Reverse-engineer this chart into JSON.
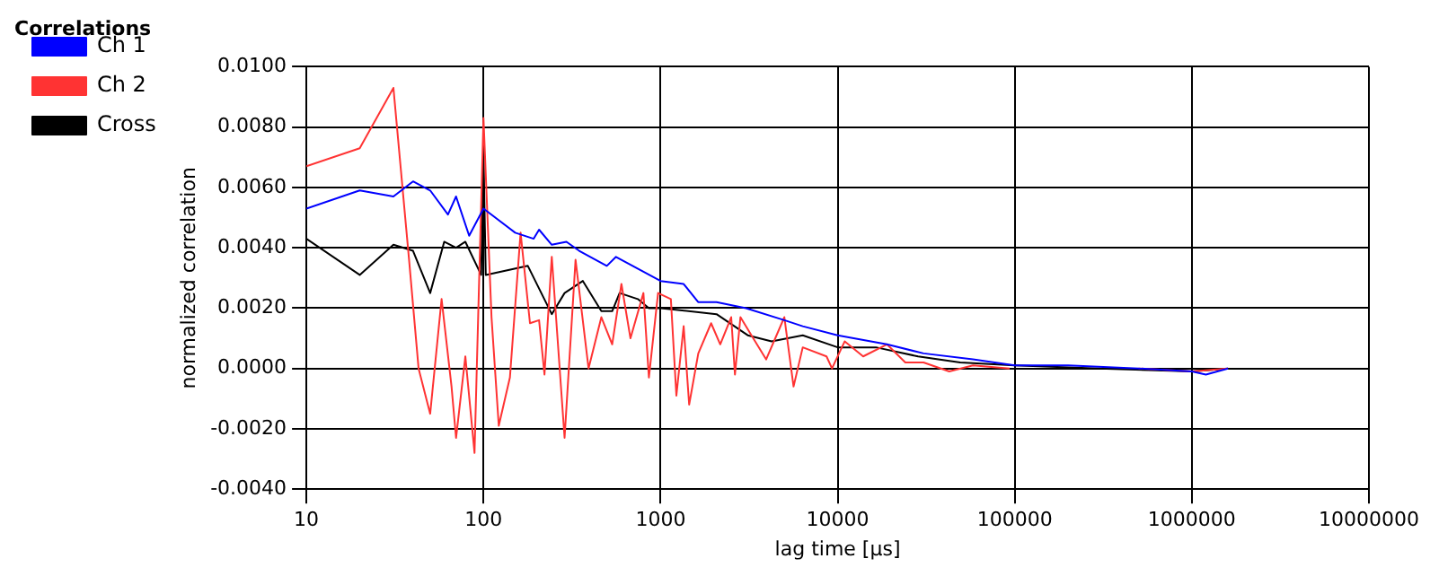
{
  "chart_data": {
    "type": "line",
    "title": "Correlations",
    "xlabel": "lag time [µs]",
    "ylabel": "normalized correlation",
    "log": "x",
    "grid": true,
    "legend": "top left",
    "marker": "none",
    "line_style": "solid",
    "xlim": [
      10,
      10000000
    ],
    "xticks": [
      10,
      100,
      1000,
      10000,
      100000,
      1000000,
      10000000
    ],
    "ylim": [
      -0.004,
      0.01
    ],
    "yticks": [
      {
        "value": -0.004,
        "label": "-0.0040"
      },
      {
        "value": -0.002,
        "label": "-0.0020"
      },
      {
        "value": 0,
        "label": "0.0000"
      },
      {
        "value": 0.002,
        "label": "0.0020"
      },
      {
        "value": 0.004,
        "label": "0.0040"
      },
      {
        "value": 0.006,
        "label": "0.0060"
      },
      {
        "value": 0.008,
        "label": "0.0080"
      },
      {
        "value": 0.01,
        "label": "0.0100"
      }
    ],
    "series": [
      {
        "name": "Ch 1",
        "color": "#0000ff",
        "x": [
          10,
          20,
          31,
          40,
          50,
          63,
          70,
          83,
          100,
          151,
          192,
          206,
          243,
          294,
          347,
          497,
          560,
          1000,
          1350,
          1630,
          2070,
          3035,
          5000,
          6350,
          10000,
          18970,
          30550,
          58100,
          100000,
          200000,
          500000,
          1000000,
          1200000,
          1600000
        ],
        "values": [
          0.0053,
          0.0059,
          0.0057,
          0.0062,
          0.0059,
          0.0051,
          0.0057,
          0.0044,
          0.0053,
          0.0045,
          0.0043,
          0.0046,
          0.0041,
          0.0042,
          0.0039,
          0.0034,
          0.0037,
          0.0029,
          0.0028,
          0.0022,
          0.0022,
          0.002,
          0.0016,
          0.0014,
          0.0011,
          0.0008,
          0.0005,
          0.0003,
          0.0001,
          0.0001,
          0,
          -0.0001,
          -0.0002,
          0
        ]
      },
      {
        "name": "Ch 2",
        "color": "#ff3333",
        "x": [
          10,
          20,
          31,
          38,
          43,
          50,
          58,
          66,
          70,
          79,
          89,
          100,
          111,
          122,
          141,
          162,
          183,
          206,
          221,
          243,
          287,
          331,
          392,
          463,
          533,
          601,
          676,
          800,
          859,
          968,
          1143,
          1228,
          1350,
          1450,
          1633,
          1929,
          2172,
          2505,
          2630,
          2825,
          3335,
          3945,
          5000,
          5635,
          6350,
          8650,
          9290,
          10960,
          13930,
          18970,
          24100,
          30550,
          42650,
          58100,
          93500,
          200000,
          500000,
          1000000,
          1600000
        ],
        "values": [
          0.0067,
          0.0073,
          0.0093,
          0.0036,
          0,
          -0.0015,
          0.0023,
          -0.0006,
          -0.0023,
          0.0004,
          -0.0028,
          0.0083,
          0.0017,
          -0.0019,
          -0.0003,
          0.0045,
          0.0015,
          0.0016,
          -0.0002,
          0.0037,
          -0.0023,
          0.0036,
          0,
          0.0017,
          0.0008,
          0.0028,
          0.001,
          0.0025,
          -0.0003,
          0.0025,
          0.0023,
          -0.0009,
          0.0014,
          -0.0012,
          0.0005,
          0.0015,
          0.0008,
          0.0017,
          -0.0002,
          0.0017,
          0.001,
          0.0003,
          0.0017,
          -0.0006,
          0.0007,
          0.0004,
          0,
          0.0009,
          0.0004,
          0.0008,
          0.0002,
          0.0002,
          -0.0001,
          0.0001,
          0,
          null,
          0,
          -0.0001,
          0
        ]
      },
      {
        "name": "Cross",
        "color": "#000000",
        "x": [
          10,
          20,
          31,
          40,
          50,
          60,
          70,
          79,
          97,
          100,
          103,
          178,
          243,
          287,
          364,
          463,
          533,
          587,
          744,
          859,
          1000,
          2070,
          3105,
          4235,
          6350,
          10000,
          16450,
          28450,
          49200,
          100000,
          300000,
          1000000,
          1600000
        ],
        "values": [
          0.0043,
          0.0031,
          0.0041,
          0.0039,
          0.0025,
          0.0042,
          0.004,
          0.0042,
          0.0031,
          0.0072,
          0.0031,
          0.0034,
          0.0018,
          0.0025,
          0.0029,
          0.0019,
          0.0019,
          0.0025,
          0.0023,
          0.002,
          0.002,
          0.0018,
          0.0011,
          0.0009,
          0.0011,
          0.0007,
          0.0007,
          0.0004,
          0.0002,
          0.0001,
          0,
          -0.0001,
          0
        ]
      }
    ]
  }
}
